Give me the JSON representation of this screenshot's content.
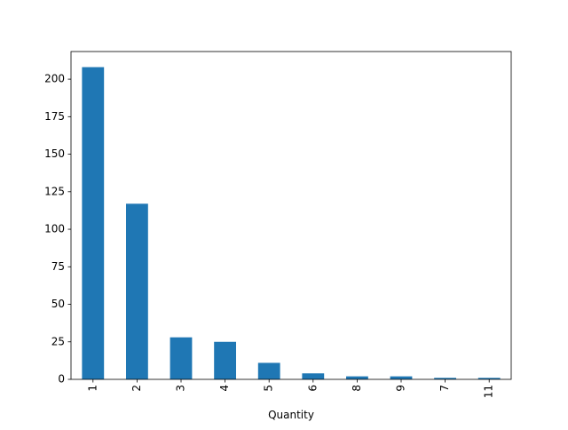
{
  "chart_data": {
    "type": "bar",
    "title": "",
    "xlabel": "Quantity",
    "ylabel": "",
    "categories": [
      "1",
      "2",
      "3",
      "4",
      "5",
      "6",
      "8",
      "9",
      "7",
      "11"
    ],
    "values": [
      208,
      117,
      28,
      25,
      11,
      4,
      2,
      2,
      1,
      1
    ],
    "ylim": [
      0,
      218.4
    ],
    "yticks": [
      0,
      25,
      50,
      75,
      100,
      125,
      150,
      175,
      200
    ],
    "grid": false,
    "legend": "none",
    "colors": {
      "bar": "#1f77b4",
      "axis": "#000000",
      "background": "#ffffff"
    }
  }
}
